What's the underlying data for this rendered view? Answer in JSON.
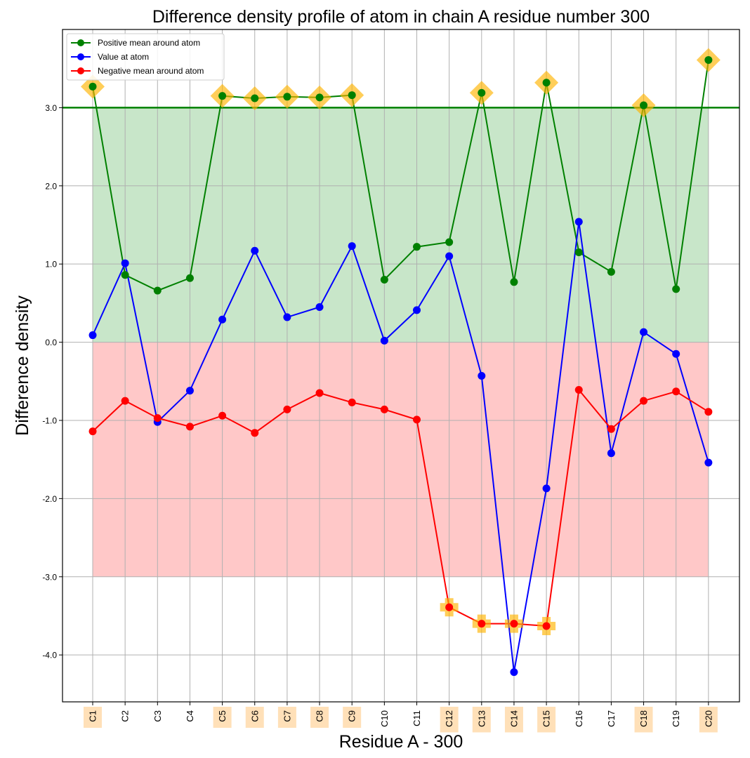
{
  "chart_data": {
    "type": "line",
    "title": "Difference density profile of atom in chain A residue number 300",
    "xlabel": "Residue A - 300",
    "ylabel": "Difference density",
    "categories": [
      "C1",
      "C2",
      "C3",
      "C4",
      "C5",
      "C6",
      "C7",
      "C8",
      "C9",
      "C10",
      "C11",
      "C12",
      "C13",
      "C14",
      "C15",
      "C16",
      "C17",
      "C18",
      "C19",
      "C20"
    ],
    "ylim": [
      -4.6,
      4.0
    ],
    "yticks": [
      -4.0,
      -3.0,
      -2.0,
      -1.0,
      0.0,
      1.0,
      2.0,
      3.0
    ],
    "ytick_labels": [
      "-4.0",
      "-3.0",
      "-2.0",
      "-1.0",
      "0.0",
      "1.0",
      "2.0",
      "3.0"
    ],
    "grid": true,
    "legend_position": "top-left",
    "threshold_line": 3.0,
    "bands": [
      {
        "from": 0.0,
        "to": 3.0,
        "color": "#c8e6c9"
      },
      {
        "from": -3.0,
        "to": 0.0,
        "color": "#ffc8c8"
      }
    ],
    "highlighted_categories": [
      "C1",
      "C5",
      "C6",
      "C7",
      "C8",
      "C9",
      "C12",
      "C13",
      "C14",
      "C15",
      "C18",
      "C20"
    ],
    "series": [
      {
        "name": "Positive mean around atom",
        "color": "#008000",
        "values": [
          3.27,
          0.86,
          0.66,
          0.82,
          3.15,
          3.12,
          3.14,
          3.13,
          3.16,
          0.8,
          1.22,
          1.28,
          3.19,
          0.77,
          3.32,
          1.15,
          0.9,
          3.03,
          0.68,
          3.61
        ],
        "highlight_marker": "diamond",
        "highlight_indices": [
          0,
          4,
          5,
          6,
          7,
          8,
          12,
          14,
          17,
          19
        ]
      },
      {
        "name": "Value at atom",
        "color": "#0000ff",
        "values": [
          0.09,
          1.01,
          -1.02,
          -0.62,
          0.29,
          1.17,
          0.32,
          0.45,
          1.23,
          0.02,
          0.41,
          1.1,
          -0.43,
          -4.22,
          -1.87,
          1.54,
          -1.42,
          0.13,
          -0.15,
          -1.54
        ]
      },
      {
        "name": "Negative mean around atom",
        "color": "#ff0000",
        "values": [
          -1.14,
          -0.75,
          -0.97,
          -1.08,
          -0.94,
          -1.16,
          -0.86,
          -0.65,
          -0.77,
          -0.86,
          -0.99,
          -3.39,
          -3.6,
          -3.6,
          -3.63,
          -0.61,
          -1.11,
          -0.75,
          -0.63,
          -0.89
        ],
        "highlight_marker": "plus",
        "highlight_indices": [
          11,
          12,
          13,
          14
        ]
      }
    ]
  },
  "colors": {
    "highlight_marker": "#ffb300",
    "highlight_label_bg": "#ffe0b8",
    "grid": "#b0b0b0"
  }
}
